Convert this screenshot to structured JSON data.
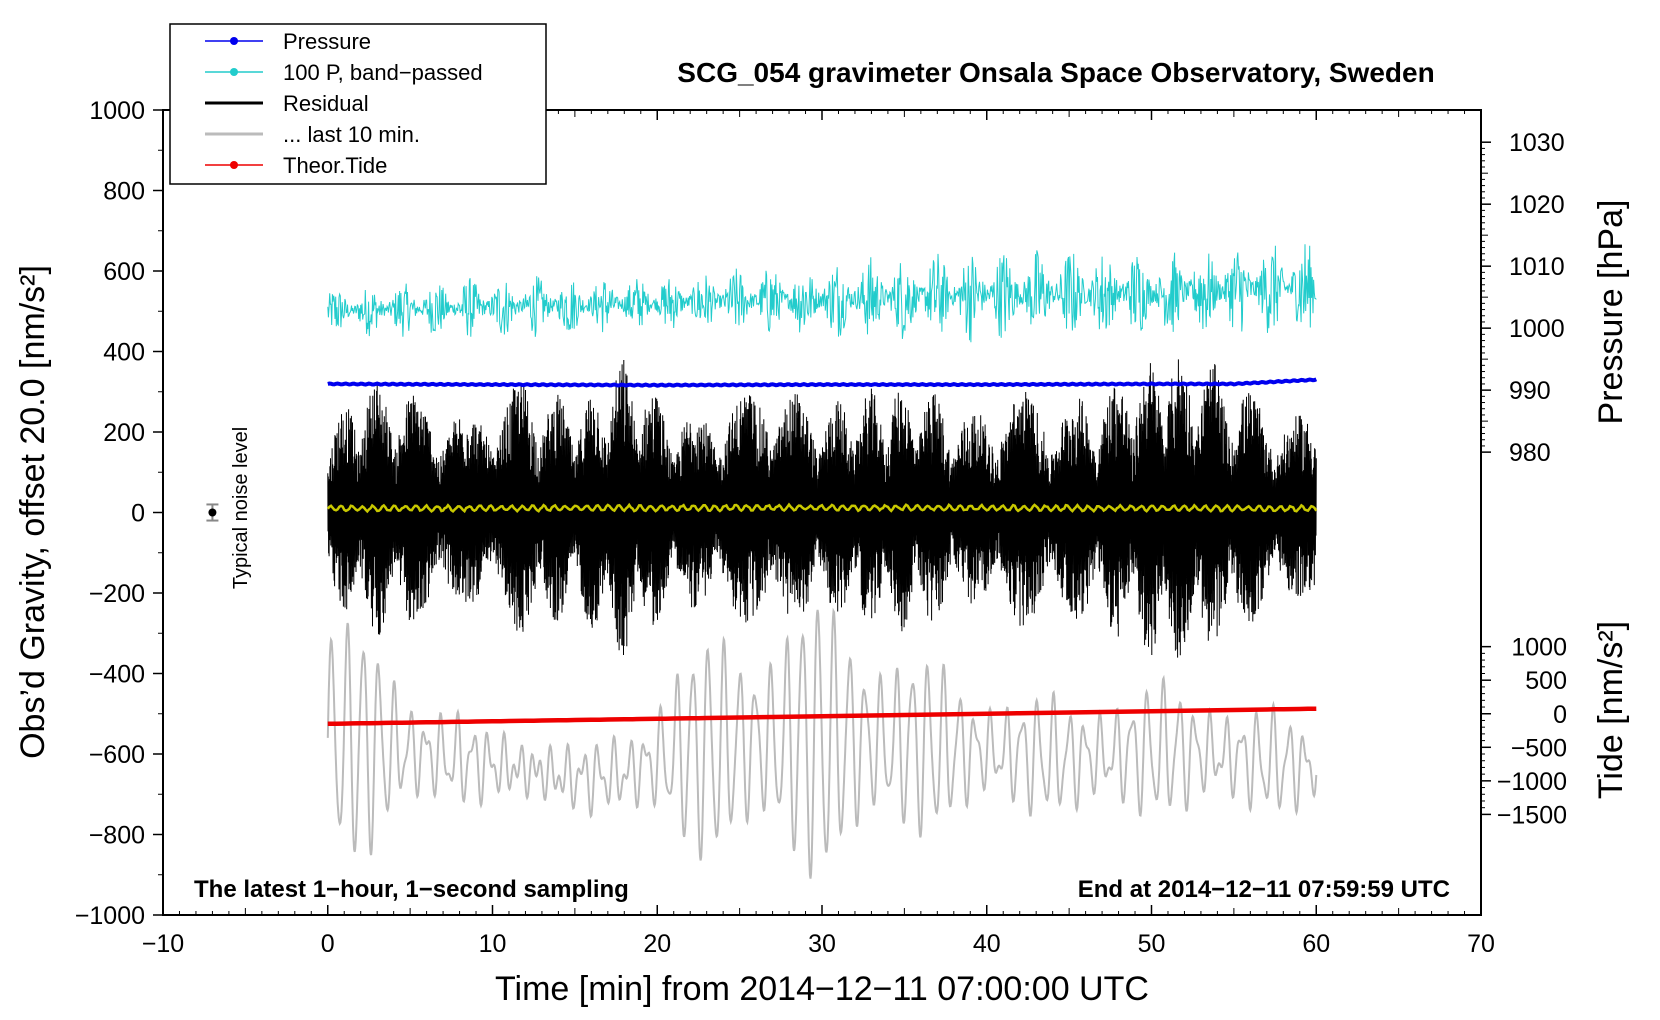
{
  "chart_data": {
    "type": "line",
    "title": "SCG_054 gravimeter Onsala Space Observatory, Sweden",
    "xlabel": "Time [min] from 2014−12−11 07:00:00 UTC",
    "ylabel_left": "Obs’d Gravity, offset 20.0 [nm/s²]",
    "ylabel_pressure": "Pressure [hPa]",
    "ylabel_tide": "Tide [nm/s²]",
    "xlim": [
      -10,
      70
    ],
    "ylim_left": [
      -1000,
      1000
    ],
    "x_ticks": [
      "−10",
      "0",
      "10",
      "20",
      "30",
      "40",
      "50",
      "60",
      "70"
    ],
    "x_tick_values": [
      -10,
      0,
      10,
      20,
      30,
      40,
      50,
      60,
      70
    ],
    "left_ticks": [
      "−1000",
      "−800",
      "−600",
      "−400",
      "−200",
      "0",
      "200",
      "400",
      "600",
      "800",
      "1000"
    ],
    "left_tick_values": [
      -1000,
      -800,
      -600,
      -400,
      -200,
      0,
      200,
      400,
      600,
      800,
      1000
    ],
    "pressure_ticks": [
      "980",
      "990",
      "1000",
      "1010",
      "1020",
      "1030"
    ],
    "pressure_tick_values": [
      980,
      990,
      1000,
      1010,
      1020,
      1030
    ],
    "pressure_axis_ref": {
      "gravity_at_980": 150,
      "gravity_per_hpa": 15.4
    },
    "tide_ticks": [
      "−1500",
      "−1000",
      "−500",
      "0",
      "500",
      "1000"
    ],
    "tide_tick_values": [
      -1500,
      -1000,
      -500,
      0,
      500,
      1000
    ],
    "tide_axis_ref": {
      "gravity_at_0": -500,
      "gravity_per_unit": 0.1667
    },
    "annotation_left": "The latest 1−hour, 1−second sampling",
    "annotation_right": "End at 2014−12−11 07:59:59 UTC",
    "noise_label": "Typical noise level",
    "noise_marker": {
      "x": -7,
      "y": 0,
      "err": 20
    },
    "legend": [
      {
        "label": "Pressure",
        "color": "#0000ee",
        "marker": true
      },
      {
        "label": "100 P, band−passed",
        "color": "#22cccc",
        "marker": true
      },
      {
        "label": "Residual",
        "color": "#000000",
        "marker": false
      },
      {
        "label": "... last 10 min.",
        "color": "#bbbbbb",
        "marker": false
      },
      {
        "label": "Theor.Tide",
        "color": "#ee0000",
        "marker": true
      }
    ],
    "series": [
      {
        "name": "Pressure",
        "color": "#0000ee",
        "unit": "hPa",
        "x": [
          0,
          10,
          20,
          30,
          40,
          50,
          55,
          60
        ],
        "values": [
          991.0,
          990.9,
          990.8,
          990.9,
          990.9,
          991.0,
          991.0,
          991.7
        ]
      },
      {
        "name": "100 P, band-passed",
        "color": "#22cccc",
        "unit": "nm/s²",
        "x": [
          0,
          10,
          20,
          30,
          40,
          50,
          60
        ],
        "center": [
          500,
          510,
          520,
          530,
          540,
          545,
          560
        ],
        "amplitude": [
          60,
          80,
          70,
          100,
          120,
          110,
          130
        ]
      },
      {
        "name": "Residual",
        "color": "#000000",
        "unit": "nm/s²",
        "x": [
          0,
          3,
          6,
          9,
          12,
          15,
          18,
          21,
          24,
          27,
          30,
          33,
          36,
          39,
          42,
          45,
          48,
          51,
          54,
          57,
          60
        ],
        "amplitude": [
          230,
          330,
          280,
          240,
          330,
          260,
          380,
          240,
          270,
          320,
          260,
          300,
          310,
          240,
          300,
          270,
          330,
          400,
          360,
          260,
          220
        ]
      },
      {
        "name": "Residual smoothed",
        "color": "#c8c800",
        "unit": "nm/s²",
        "x": [
          0,
          30,
          60
        ],
        "values": [
          10,
          12,
          10
        ]
      },
      {
        "name": "... last 10 min.",
        "color": "#bbbbbb",
        "unit": "nm/s²",
        "x": [
          0,
          3,
          6,
          9,
          12,
          15,
          18,
          21,
          24,
          27,
          30,
          33,
          36,
          39,
          42,
          45,
          48,
          51,
          54,
          57,
          60
        ],
        "center": [
          -560,
          -580,
          -600,
          -620,
          -640,
          -660,
          -650,
          -600,
          -580,
          -570,
          -560,
          -570,
          -580,
          -590,
          -600,
          -610,
          -600,
          -590,
          -600,
          -620,
          -630
        ],
        "amplitude": [
          280,
          250,
          120,
          70,
          60,
          50,
          80,
          200,
          270,
          300,
          320,
          280,
          200,
          150,
          130,
          120,
          150,
          140,
          130,
          110,
          80
        ]
      },
      {
        "name": "Theor.Tide",
        "color": "#ee0000",
        "unit": "nm/s²",
        "x": [
          0,
          60
        ],
        "values": [
          -150,
          75
        ]
      }
    ]
  }
}
